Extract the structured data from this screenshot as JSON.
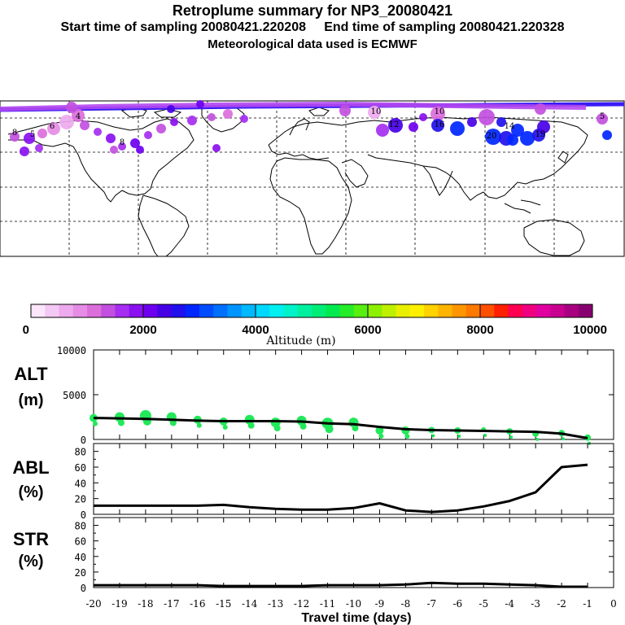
{
  "header": {
    "title": "Retroplume summary for NP3_20080421",
    "sampling": "Start time of sampling 20080421.220208     End time of sampling 20080421.220328",
    "met": "Meteorological data used is ECMWF"
  },
  "colorbar": {
    "ticks": [
      "0",
      "2000",
      "4000",
      "6000",
      "8000",
      "10000"
    ],
    "label": "Altitude (m)",
    "colors": [
      "#fbe6fb",
      "#f4c8f4",
      "#eeaaee",
      "#e68ce6",
      "#dc6edc",
      "#c24fe0",
      "#a52ef0",
      "#8a10f0",
      "#6e00f0",
      "#4600e6",
      "#2010ec",
      "#0026ff",
      "#004cff",
      "#0070ff",
      "#0094ff",
      "#00b8ff",
      "#00d8ff",
      "#00f0f0",
      "#00f2c8",
      "#00f0a0",
      "#00ee78",
      "#00ea50",
      "#24ec28",
      "#58ee10",
      "#8cf000",
      "#bef000",
      "#e8f000",
      "#fff000",
      "#ffd200",
      "#ffb400",
      "#ff9600",
      "#ff7800",
      "#ff5000",
      "#ff2000",
      "#ff0050",
      "#f00080",
      "#e000a0",
      "#c80090",
      "#a80080",
      "#880070"
    ]
  },
  "map": {
    "labels": [
      "4",
      "5",
      "6",
      "8",
      "10",
      "12",
      "14",
      "16",
      "19",
      "20"
    ]
  },
  "alt_panel": {
    "title": "ALT",
    "unit": "(m)",
    "yticks": [
      "10000",
      "5000",
      "0"
    ]
  },
  "abl_panel": {
    "title": "ABL",
    "unit": "(%)",
    "yticks": [
      "80",
      "60",
      "40",
      "20",
      "0"
    ]
  },
  "str_panel": {
    "title": "STR",
    "unit": "(%)",
    "yticks": [
      "80",
      "60",
      "40",
      "20",
      "0"
    ]
  },
  "xaxis": {
    "label": "Travel time (days)",
    "ticks": [
      "-20",
      "-19",
      "-18",
      "-17",
      "-16",
      "-15",
      "-14",
      "-13",
      "-12",
      "-11",
      "-10",
      "-9",
      "-8",
      "-7",
      "-6",
      "-5",
      "-4",
      "-3",
      "-2",
      "-1",
      "0"
    ]
  },
  "chart_data": [
    {
      "type": "line",
      "title": "ALT",
      "ylabel": "(m)",
      "xlabel": "Travel time (days)",
      "xlim": [
        -20,
        0
      ],
      "ylim": [
        0,
        10000
      ],
      "x": [
        -20,
        -19,
        -18,
        -17,
        -16,
        -15,
        -14,
        -13,
        -12,
        -11,
        -10,
        -9,
        -8,
        -7,
        -6,
        -5,
        -4,
        -3,
        -2,
        -1
      ],
      "series": [
        {
          "name": "mean altitude",
          "values": [
            2400,
            2350,
            2300,
            2200,
            2100,
            2050,
            2050,
            2050,
            2000,
            1800,
            1700,
            1400,
            1150,
            1050,
            1000,
            950,
            900,
            850,
            650,
            150
          ]
        }
      ],
      "scatter": {
        "x": [
          -20,
          -19,
          -18,
          -17,
          -16,
          -15,
          -14,
          -13,
          -12,
          -11,
          -10,
          -9,
          -8,
          -7,
          -6,
          -5,
          -4,
          -3,
          -2,
          -1
        ],
        "y": [
          2400,
          2500,
          2650,
          2500,
          2200,
          2000,
          2200,
          1900,
          2100,
          1800,
          1900,
          1000,
          1000,
          1050,
          1000,
          1100,
          900,
          650,
          700,
          200
        ],
        "sizes": [
          5,
          6,
          7,
          6,
          5,
          5,
          6,
          6,
          6,
          7,
          6,
          5,
          5,
          4,
          4,
          3,
          4,
          4,
          4,
          4
        ],
        "color": "#22e85a"
      }
    },
    {
      "type": "line",
      "title": "ABL",
      "ylabel": "(%)",
      "xlim": [
        -20,
        0
      ],
      "ylim": [
        0,
        90
      ],
      "x": [
        -20,
        -19,
        -18,
        -17,
        -16,
        -15,
        -14,
        -13,
        -12,
        -11,
        -10,
        -9,
        -8,
        -7,
        -6,
        -5,
        -4,
        -3,
        -2,
        -1
      ],
      "series": [
        {
          "name": "ABL fraction",
          "values": [
            11,
            11,
            11,
            11,
            11,
            12,
            9,
            7,
            6,
            6,
            8,
            14,
            5,
            3,
            5,
            10,
            17,
            28,
            60,
            63
          ]
        }
      ]
    },
    {
      "type": "line",
      "title": "STR",
      "ylabel": "(%)",
      "xlim": [
        -20,
        0
      ],
      "ylim": [
        0,
        90
      ],
      "x": [
        -20,
        -19,
        -18,
        -17,
        -16,
        -15,
        -14,
        -13,
        -12,
        -11,
        -10,
        -9,
        -8,
        -7,
        -6,
        -5,
        -4,
        -3,
        -2,
        -1
      ],
      "series": [
        {
          "name": "STR fraction",
          "values": [
            3,
            3,
            3,
            3,
            3,
            2,
            2,
            2,
            2,
            3,
            3,
            3,
            4,
            6,
            5,
            5,
            4,
            3,
            1,
            1
          ]
        }
      ]
    }
  ]
}
